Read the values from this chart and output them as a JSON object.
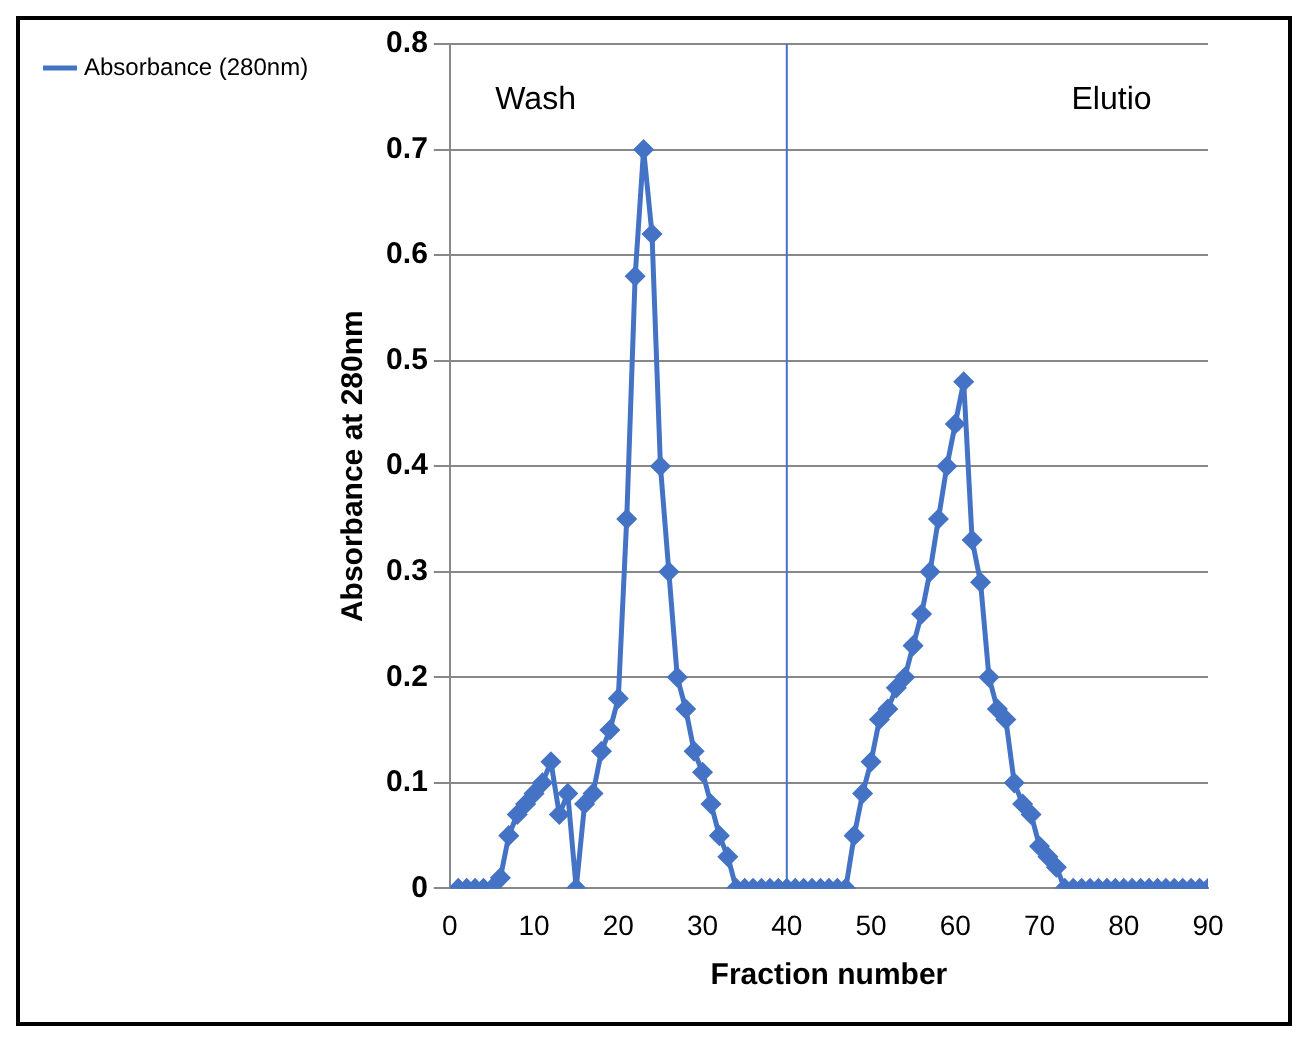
{
  "chart_data": {
    "type": "line",
    "xlabel": "Fraction number",
    "ylabel": "Absorbance at 280nm",
    "annotations": [
      "Wash",
      "Elutio"
    ],
    "ref_lines": [
      {
        "axis": "x",
        "value": 40,
        "color": "#4472c4"
      }
    ],
    "x": [
      1,
      2,
      3,
      4,
      5,
      6,
      7,
      8,
      9,
      10,
      11,
      12,
      13,
      14,
      15,
      16,
      17,
      18,
      19,
      20,
      21,
      22,
      23,
      24,
      25,
      26,
      27,
      28,
      29,
      30,
      31,
      32,
      33,
      34,
      35,
      36,
      37,
      38,
      39,
      40,
      41,
      42,
      43,
      44,
      45,
      46,
      47,
      48,
      49,
      50,
      51,
      52,
      53,
      54,
      55,
      56,
      57,
      58,
      59,
      60,
      61,
      62,
      63,
      64,
      65,
      66,
      67,
      68,
      69,
      70,
      71,
      72,
      73,
      74,
      75,
      76,
      77,
      78,
      79,
      80,
      81,
      82,
      83,
      84,
      85,
      86,
      87,
      88,
      89,
      90
    ],
    "series": [
      {
        "name": "Absorbance (280nm)",
        "color": "#4472c4",
        "values": [
          0,
          0,
          0,
          0,
          0,
          0.01,
          0.05,
          0.07,
          0.08,
          0.09,
          0.1,
          0.12,
          0.07,
          0.09,
          0,
          0.08,
          0.09,
          0.13,
          0.15,
          0.18,
          0.35,
          0.58,
          0.7,
          0.62,
          0.4,
          0.3,
          0.2,
          0.17,
          0.13,
          0.11,
          0.08,
          0.05,
          0.03,
          0,
          0,
          0,
          0,
          0,
          0,
          0,
          0,
          0,
          0,
          0,
          0,
          0,
          0,
          0.05,
          0.09,
          0.12,
          0.16,
          0.17,
          0.19,
          0.2,
          0.23,
          0.26,
          0.3,
          0.35,
          0.4,
          0.44,
          0.48,
          0.33,
          0.29,
          0.2,
          0.17,
          0.16,
          0.1,
          0.08,
          0.07,
          0.04,
          0.03,
          0.02,
          0,
          0,
          0,
          0,
          0,
          0,
          0,
          0,
          0,
          0,
          0,
          0,
          0,
          0,
          0,
          0,
          0,
          0
        ]
      }
    ],
    "xlim": [
      0,
      90
    ],
    "xticks": [
      0,
      10,
      20,
      30,
      40,
      50,
      60,
      70,
      80,
      90
    ],
    "ylim": [
      0,
      0.8
    ],
    "yticks": [
      0,
      0.1,
      0.2,
      0.3,
      0.4,
      0.5,
      0.6,
      0.7,
      0.8
    ],
    "grid": "y",
    "legend": "left",
    "marker": "diamond",
    "line_style": "solid"
  }
}
